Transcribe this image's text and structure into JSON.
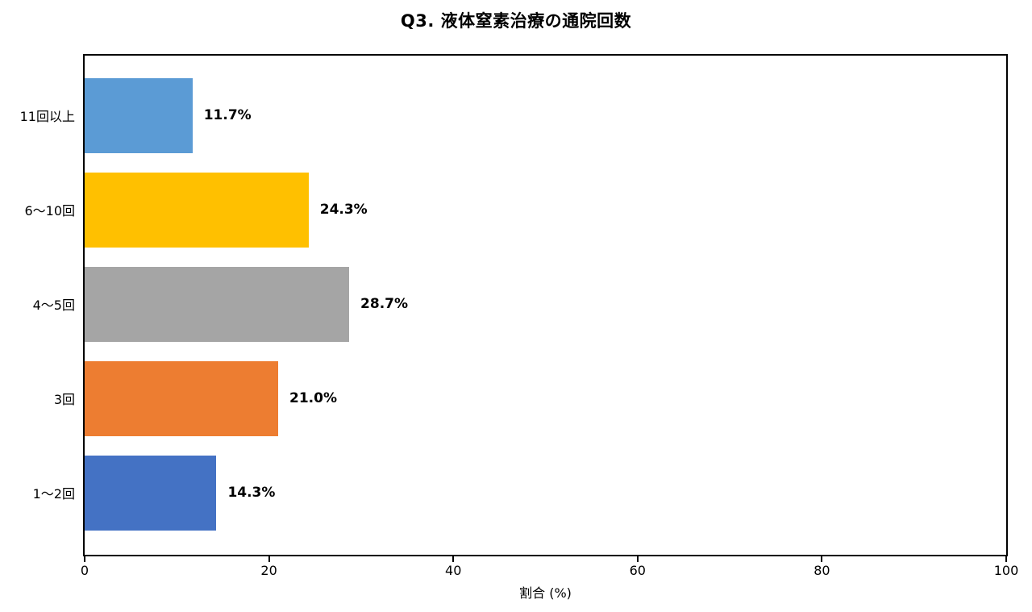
{
  "chart_data": {
    "type": "bar",
    "orientation": "horizontal",
    "title": "Q3. 液体窒素治療の通院回数",
    "xlabel": "割合 (%)",
    "xlim": [
      0,
      100
    ],
    "xticks": [
      0,
      20,
      40,
      60,
      80,
      100
    ],
    "categories": [
      "11回以上",
      "6〜10回",
      "4〜5回",
      "3回",
      "1〜2回"
    ],
    "values": [
      11.7,
      24.3,
      28.7,
      21.0,
      14.3
    ],
    "data_labels": [
      "11.7%",
      "24.3%",
      "28.7%",
      "21.0%",
      "14.3%"
    ],
    "bar_colors": [
      "#5B9BD5",
      "#FFC000",
      "#A5A5A5",
      "#ED7D31",
      "#4472C4"
    ],
    "grid": false,
    "legend": "none",
    "axis_color": "#000000",
    "background_color": "#FFFFFF"
  }
}
